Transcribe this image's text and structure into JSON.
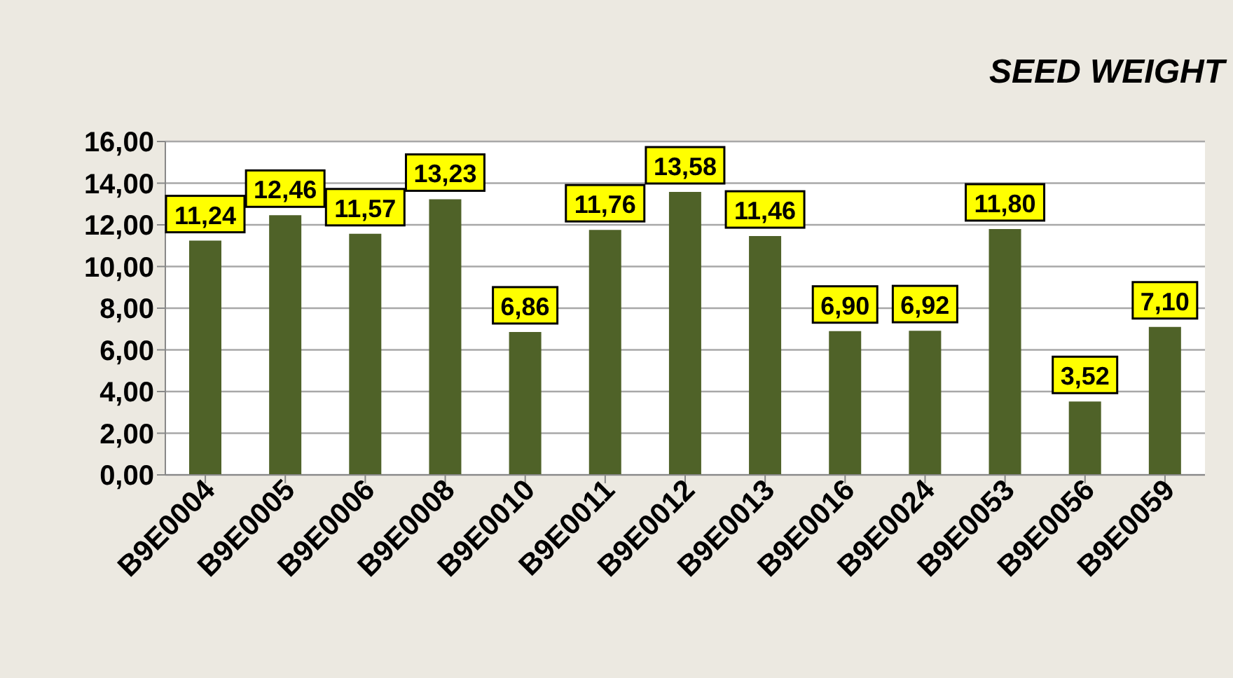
{
  "chart_data": {
    "type": "bar",
    "title": "SEED WEIGHT",
    "categories": [
      "B9E0004",
      "B9E0005",
      "B9E0006",
      "B9E0008",
      "B9E0010",
      "B9E0011",
      "B9E0012",
      "B9E0013",
      "B9E0016",
      "B9E0024",
      "B9E0053",
      "B9E0056",
      "B9E0059"
    ],
    "values": [
      11.24,
      12.46,
      11.57,
      13.23,
      6.86,
      11.76,
      13.58,
      11.46,
      6.9,
      6.92,
      11.8,
      3.52,
      7.1
    ],
    "value_labels": [
      "11,24",
      "12,46",
      "11,57",
      "13,23",
      "6,86",
      "11,76",
      "13,58",
      "11,46",
      "6,90",
      "6,92",
      "11,80",
      "3,52",
      "7,10"
    ],
    "color": "#4f6228",
    "ylim": [
      0,
      16
    ],
    "yticks": [
      {
        "value": 0,
        "label": "0,00"
      },
      {
        "value": 2,
        "label": "2,00"
      },
      {
        "value": 4,
        "label": "4,00"
      },
      {
        "value": 6,
        "label": "6,00"
      },
      {
        "value": 8,
        "label": "8,00"
      },
      {
        "value": 10,
        "label": "10,00"
      },
      {
        "value": 12,
        "label": "12,00"
      },
      {
        "value": 14,
        "label": "14,00"
      },
      {
        "value": 16,
        "label": "16,00"
      }
    ],
    "grid": "y",
    "legend": false
  }
}
